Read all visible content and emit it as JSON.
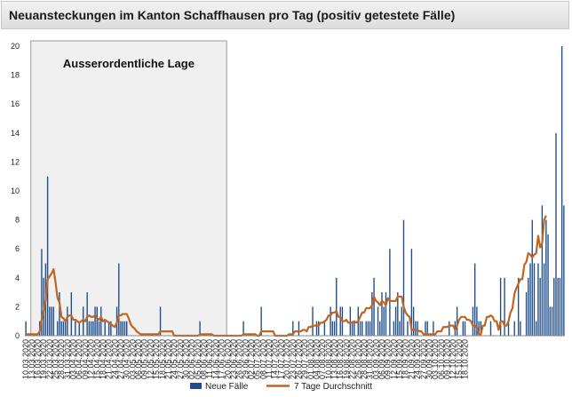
{
  "chart_data": {
    "type": "bar",
    "title": "Neuansteckungen im Kanton Schaffhausen pro Tag (positiv getestete Fälle)",
    "annotation": "Ausserordentliche Lage",
    "annotation_range": [
      "13.03.2020",
      "19.06.2020"
    ],
    "x_tick_labels": [
      "10.03.2020",
      "13.03.2020",
      "16.03.2020",
      "19.03.2020",
      "22.03.2020",
      "25.03.2020",
      "28.03.2020",
      "31.03.2020",
      "03.04.2020",
      "06.04.2020",
      "09.04.2020",
      "12.04.2020",
      "15.04.2020",
      "18.04.2020",
      "21.04.2020",
      "24.04.2020",
      "27.04.2020",
      "30.04.2020",
      "03.05.2020",
      "06.05.2020",
      "09.05.2020",
      "12.05.2020",
      "15.05.2020",
      "18.05.2020",
      "21.05.2020",
      "24.05.2020",
      "27.05.2020",
      "30.05.2020",
      "02.06.2020",
      "05.06.2020",
      "08.06.2020",
      "11.06.2020",
      "14.06.2020",
      "17.06.2020",
      "20.06.2020",
      "23.06.2020",
      "26.06.2020",
      "29.06.2020",
      "02.07.2020",
      "05.07.2020",
      "08.07.2020",
      "11.07.2020",
      "14.07.2020",
      "17.07.2020",
      "20.07.2020",
      "23.07.2020",
      "26.07.2020",
      "29.07.2020",
      "01.08.2020",
      "04.08.2020",
      "07.08.2020",
      "10.08.2020",
      "13.08.2020",
      "16.08.2020",
      "19.08.2020",
      "22.08.2020",
      "25.08.2020",
      "28.08.2020",
      "31.08.2020",
      "03.09.2020",
      "06.09.2020",
      "09.09.2020",
      "12.09.2020",
      "15.09.2020",
      "18.09.2020",
      "21.09.2020",
      "24.09.2020",
      "27.09.2020",
      "30.09.2020",
      "03.10.2020",
      "06.10.2020",
      "09.10.2020",
      "12.10.2020",
      "15.10.2020",
      "18.10.2020"
    ],
    "x_start_date": "10.03.2020",
    "y_ticks": [
      0,
      2,
      4,
      6,
      8,
      10,
      12,
      14,
      16,
      18,
      20
    ],
    "ylim": [
      0,
      20
    ],
    "grid": false,
    "legend_position": "bottom",
    "series": [
      {
        "name": "Neue Fälle",
        "kind": "bar",
        "color": "#1f4e8c",
        "values": [
          1,
          0,
          0,
          0,
          0,
          0,
          0,
          1,
          6,
          4,
          5,
          11,
          2,
          2,
          2,
          0,
          1,
          3,
          1,
          1,
          1,
          2,
          0,
          3,
          0,
          1,
          0,
          1,
          0,
          2,
          0,
          3,
          1,
          1,
          1,
          2,
          2,
          1,
          2,
          0,
          1,
          0,
          1,
          1,
          0,
          0,
          2,
          5,
          1,
          1,
          1,
          1,
          0,
          0,
          0,
          0,
          0,
          0,
          0,
          0,
          0,
          0,
          0,
          0,
          0,
          0,
          0,
          0,
          2,
          0,
          0,
          0,
          0,
          0,
          0,
          0,
          0,
          0,
          0,
          0,
          0,
          0,
          0,
          0,
          0,
          0,
          0,
          0,
          1,
          0,
          0,
          0,
          0,
          0,
          0,
          0,
          0,
          0,
          0,
          0,
          0,
          0,
          0,
          0,
          0,
          0,
          0,
          0,
          0,
          0,
          1,
          0,
          0,
          0,
          0,
          0,
          0,
          0,
          0,
          2,
          0,
          0,
          0,
          0,
          0,
          0,
          0,
          0,
          0,
          0,
          0,
          0,
          0,
          0,
          0,
          1,
          0,
          0,
          1,
          0,
          0,
          0,
          0,
          0,
          0,
          2,
          0,
          1,
          1,
          0,
          0,
          1,
          0,
          0,
          2,
          1,
          1,
          4,
          0,
          2,
          2,
          0,
          0,
          0,
          2,
          1,
          1,
          0,
          2,
          1,
          1,
          0,
          1,
          1,
          1,
          3,
          4,
          0,
          2,
          1,
          3,
          2,
          3,
          0,
          6,
          0,
          1,
          2,
          3,
          1,
          2,
          8,
          0,
          1,
          0,
          6,
          2,
          1,
          1,
          0,
          0,
          0,
          1,
          1,
          0,
          0,
          1,
          0,
          0,
          0,
          0,
          0,
          0,
          0,
          1,
          0,
          0,
          1,
          2,
          0,
          0,
          1,
          1,
          0,
          0,
          0,
          2,
          5,
          2,
          1,
          1,
          0,
          0,
          0,
          0,
          1,
          0,
          0,
          0,
          0,
          4,
          0,
          4,
          0,
          1,
          0,
          0,
          1,
          0,
          4,
          1,
          0,
          0,
          3,
          4,
          5,
          8,
          5,
          1,
          5,
          4,
          9,
          5,
          8,
          7,
          2,
          2,
          4,
          14,
          4,
          4,
          20,
          9
        ]
      },
      {
        "name": "7 Tage Durchschnitt",
        "kind": "line",
        "color": "#c0651f",
        "values": [
          0.1,
          0.1,
          0.1,
          0.1,
          0.1,
          0.1,
          0.1,
          0.3,
          1.1,
          1.7,
          2.4,
          3.9,
          4.1,
          4.3,
          4.6,
          3.7,
          2.6,
          2.3,
          1.3,
          1.2,
          1.0,
          1.3,
          1.4,
          1.4,
          1.1,
          1.1,
          1.0,
          0.9,
          1.0,
          1.1,
          1.0,
          1.3,
          1.4,
          1.3,
          1.3,
          1.4,
          1.2,
          1.1,
          1.3,
          1.0,
          1.1,
          1.0,
          0.9,
          0.8,
          0.7,
          0.6,
          0.9,
          1.4,
          1.4,
          1.5,
          1.5,
          1.5,
          1.2,
          0.8,
          0.6,
          0.5,
          0.3,
          0.2,
          0.1,
          0.1,
          0.1,
          0.1,
          0.1,
          0.1,
          0.1,
          0.1,
          0.1,
          0.1,
          0.3,
          0.3,
          0.3,
          0.3,
          0.3,
          0.3,
          0.3,
          0.0,
          0.0,
          0.0,
          0.0,
          0.0,
          0.0,
          0.0,
          0.0,
          0.0,
          0.0,
          0.0,
          0.0,
          0.0,
          0.1,
          0.1,
          0.1,
          0.1,
          0.1,
          0.1,
          0.1,
          0.0,
          0.0,
          0.0,
          0.0,
          0.0,
          0.0,
          0.0,
          0.0,
          0.0,
          0.0,
          0.0,
          0.0,
          0.0,
          0.0,
          0.0,
          0.1,
          0.1,
          0.1,
          0.1,
          0.1,
          0.1,
          0.1,
          0.0,
          0.0,
          0.3,
          0.3,
          0.3,
          0.3,
          0.3,
          0.3,
          0.3,
          0.0,
          0.0,
          0.0,
          0.0,
          0.0,
          0.0,
          0.0,
          0.1,
          0.1,
          0.1,
          0.3,
          0.3,
          0.3,
          0.3,
          0.4,
          0.4,
          0.3,
          0.6,
          0.6,
          0.7,
          0.7,
          0.7,
          0.7,
          0.9,
          0.9,
          1.0,
          1.1,
          1.4,
          1.4,
          1.6,
          1.6,
          1.7,
          1.3,
          1.3,
          1.0,
          1.0,
          1.1,
          0.9,
          0.9,
          0.9,
          1.0,
          0.9,
          1.0,
          1.3,
          1.6,
          1.6,
          1.9,
          1.9,
          1.9,
          2.1,
          2.7,
          2.4,
          2.3,
          2.1,
          2.4,
          2.3,
          2.1,
          2.6,
          2.4,
          2.4,
          2.4,
          2.4,
          2.7,
          2.7,
          2.7,
          2.0,
          1.6,
          1.4,
          1.3,
          0.4,
          0.4,
          0.4,
          0.4,
          0.3,
          0.3,
          0.1,
          0.1,
          0.1,
          0.1,
          0.1,
          0.1,
          0.1,
          0.3,
          0.3,
          0.3,
          0.6,
          0.6,
          0.6,
          0.7,
          0.7,
          0.7,
          0.4,
          0.7,
          1.1,
          1.3,
          1.3,
          1.3,
          1.1,
          1.1,
          1.0,
          0.7,
          0.7,
          0.6,
          0.1,
          0.1,
          0.7,
          0.7,
          1.3,
          1.3,
          1.4,
          1.3,
          1.0,
          1.0,
          0.4,
          1.0,
          1.0,
          0.7,
          0.7,
          1.0,
          1.6,
          1.9,
          2.9,
          3.3,
          3.6,
          3.9,
          3.9,
          4.9,
          5.1,
          5.7,
          5.6,
          5.4,
          5.6,
          5.7,
          6.9,
          6.1,
          6.4,
          8.0,
          8.3
        ]
      }
    ]
  }
}
